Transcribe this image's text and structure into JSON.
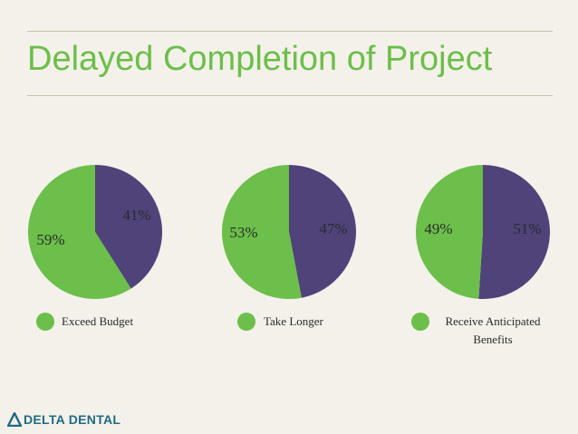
{
  "title": "Delayed Completion of Project",
  "colors": {
    "green": "#6cbf4a",
    "purple": "#4f437a",
    "title": "#6cbf4a",
    "logo": "#1f6b84"
  },
  "chart_data": [
    {
      "type": "pie",
      "slices": [
        {
          "label": "41%",
          "value": 41,
          "color": "#4f437a"
        },
        {
          "label": "59%",
          "value": 59,
          "color": "#6cbf4a"
        }
      ],
      "legend": "Exceed Budget"
    },
    {
      "type": "pie",
      "slices": [
        {
          "label": "47%",
          "value": 47,
          "color": "#4f437a"
        },
        {
          "label": "53%",
          "value": 53,
          "color": "#6cbf4a"
        }
      ],
      "legend": "Take Longer"
    },
    {
      "type": "pie",
      "slices": [
        {
          "label": "51%",
          "value": 51,
          "color": "#4f437a"
        },
        {
          "label": "49%",
          "value": 49,
          "color": "#6cbf4a"
        }
      ],
      "legend": "Receive Anticipated Benefits"
    }
  ],
  "logo": {
    "text": "DELTA DENTAL",
    "icon": "delta-triangle-icon"
  }
}
